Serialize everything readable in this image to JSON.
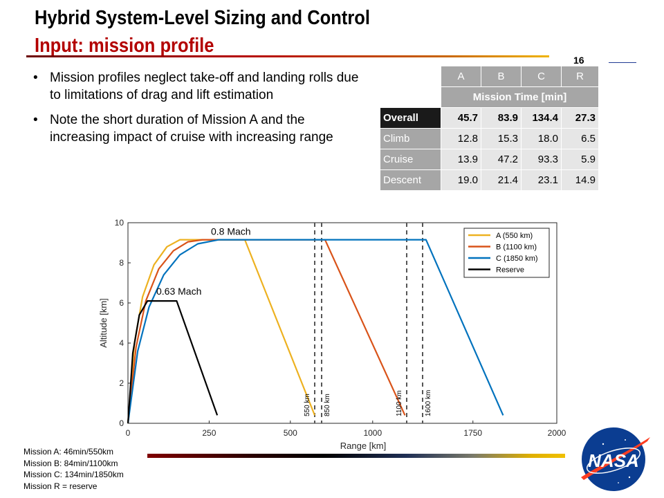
{
  "header": {
    "title": "Hybrid System-Level Sizing and Control",
    "subtitle": "Input: mission profile",
    "page_number": "16"
  },
  "bullets": [
    "Mission profiles neglect take-off and landing rolls due to limitations of drag and lift estimation",
    "Note the short duration of Mission A and the increasing impact of cruise with increasing range"
  ],
  "table": {
    "columns": [
      "A",
      "B",
      "C",
      "R"
    ],
    "subheader": "Mission Time [min]",
    "rows": [
      {
        "label": "Overall",
        "values": [
          "45.7",
          "83.9",
          "134.4",
          "27.3"
        ]
      },
      {
        "label": "Climb",
        "values": [
          "12.8",
          "15.3",
          "18.0",
          "6.5"
        ]
      },
      {
        "label": "Cruise",
        "values": [
          "13.9",
          "47.2",
          "93.3",
          "5.9"
        ]
      },
      {
        "label": "Descent",
        "values": [
          "19.0",
          "21.4",
          "23.1",
          "14.9"
        ]
      }
    ]
  },
  "chart_data": {
    "type": "line",
    "title": "",
    "xlabel": "Range [km]",
    "ylabel": "Altitude [km]",
    "xlim": [
      0,
      2000
    ],
    "ylim": [
      0,
      10
    ],
    "xticks": [
      "0",
      "250",
      "500",
      "1000",
      "1750",
      "2000"
    ],
    "yticks": [
      "0",
      "2",
      "4",
      "6",
      "8",
      "10"
    ],
    "legend_position": "top-right",
    "series": [
      {
        "name": "A (550 km)",
        "color": "#EDB120",
        "x": [
          0,
          20,
          45,
          80,
          120,
          160,
          190,
          360,
          575
        ],
        "y": [
          0,
          4.0,
          6.3,
          7.9,
          8.8,
          9.15,
          9.15,
          9.15,
          0.4
        ]
      },
      {
        "name": "B (1100 km)",
        "color": "#D95319",
        "x": [
          0,
          25,
          55,
          95,
          140,
          185,
          230,
          860,
          1095
        ],
        "y": [
          0,
          3.8,
          6.1,
          7.7,
          8.6,
          9.05,
          9.15,
          9.15,
          0.4
        ]
      },
      {
        "name": "C (1850 km)",
        "color": "#0072BD",
        "x": [
          0,
          30,
          65,
          110,
          160,
          215,
          280,
          1610,
          1840
        ],
        "y": [
          0,
          3.6,
          5.8,
          7.4,
          8.4,
          8.95,
          9.15,
          9.15,
          0.4
        ]
      },
      {
        "name": "Reserve",
        "color": "#000000",
        "x": [
          0,
          15,
          35,
          60,
          150,
          275
        ],
        "y": [
          0,
          3.5,
          5.4,
          6.1,
          6.1,
          0.4
        ]
      }
    ],
    "annotations": [
      "0.8 Mach",
      "0.63 Mach"
    ],
    "breaks": [
      {
        "left_label": "550 km",
        "right_label": "850 km"
      },
      {
        "left_label": "1100 km",
        "right_label": "1600 km"
      }
    ]
  },
  "notes": [
    "Mission  A: 46min/550km",
    "Mission  B: 84min/1100km",
    "Mission  C: 134min/1850km",
    "Mission  R = reserve"
  ],
  "logo": {
    "text": "NASA"
  }
}
